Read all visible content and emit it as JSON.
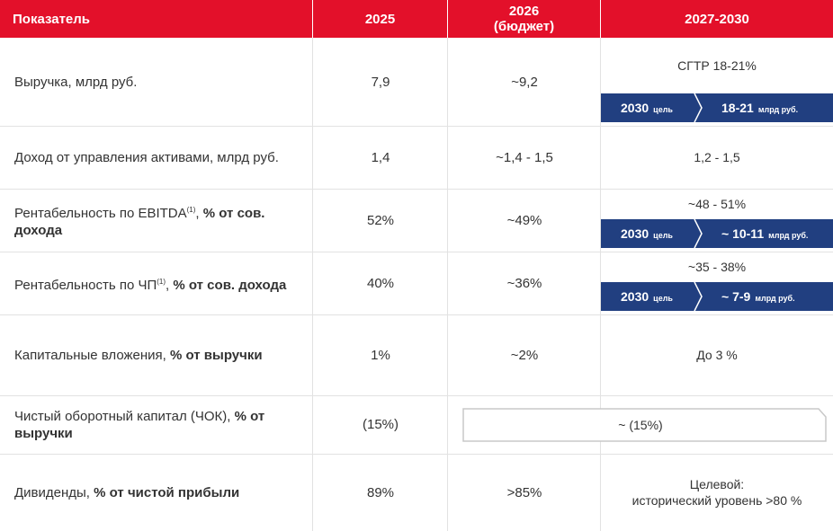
{
  "table": {
    "header": [
      [
        "Показатель"
      ],
      [
        "2025"
      ],
      [
        "2026",
        "(бюджет)"
      ],
      [
        "2027-2030"
      ]
    ],
    "rows": [
      {
        "label": [
          {
            "text": "Выручка, млрд руб.",
            "style": "normal"
          }
        ],
        "y2025": "7,9",
        "y2026": "~9,2",
        "outlook": [
          "СГТР 18-21%"
        ],
        "target": {
          "year": "2030",
          "tag": "цель",
          "value": "18-21",
          "unit": "млрд руб."
        }
      },
      {
        "label": [
          {
            "text": "Доход от управления активами, млрд руб.",
            "style": "normal"
          }
        ],
        "y2025": "1,4",
        "y2026": "~1,4 - 1,5",
        "outlook": [
          "1,2 - 1,5"
        ]
      },
      {
        "label": [
          {
            "text": "Рентабельность по EBITDA",
            "style": "normal"
          },
          {
            "text": "(1)",
            "style": "sup"
          },
          {
            "text": ", ",
            "style": "normal"
          },
          {
            "text": "% от сов. дохода",
            "style": "bold"
          }
        ],
        "y2025": "52%",
        "y2026": "~49%",
        "outlook": [
          "~48 - 51%"
        ],
        "target": {
          "year": "2030",
          "tag": "цель",
          "value": "~ 10-11",
          "unit": "млрд руб."
        }
      },
      {
        "label": [
          {
            "text": "Рентабельность по ЧП",
            "style": "normal"
          },
          {
            "text": "(1)",
            "style": "sup"
          },
          {
            "text": ", ",
            "style": "normal"
          },
          {
            "text": "% от сов. дохода",
            "style": "bold"
          }
        ],
        "y2025": "40%",
        "y2026": "~36%",
        "outlook": [
          "~35 - 38%"
        ],
        "target": {
          "year": "2030",
          "tag": "цель",
          "value": "~ 7-9",
          "unit": "млрд руб."
        }
      },
      {
        "label": [
          {
            "text": "Капитальные вложения, ",
            "style": "normal"
          },
          {
            "text": "% от выручки",
            "style": "bold"
          }
        ],
        "y2025": "1%",
        "y2026": "~2%",
        "outlook": [
          "До 3 %"
        ]
      },
      {
        "label": [
          {
            "text": "Чистый оборотный капитал (ЧОК), ",
            "style": "normal"
          },
          {
            "text": "% от выручки",
            "style": "bold"
          }
        ],
        "y2025": "(15%)",
        "span": "~ (15%)"
      },
      {
        "label": [
          {
            "text": "Дивиденды, ",
            "style": "normal"
          },
          {
            "text": "% от чистой прибыли",
            "style": "bold"
          }
        ],
        "y2025": "89%",
        "y2026": ">85%",
        "outlook": [
          "Целевой:",
          "исторический уровень >80 %"
        ]
      }
    ]
  }
}
